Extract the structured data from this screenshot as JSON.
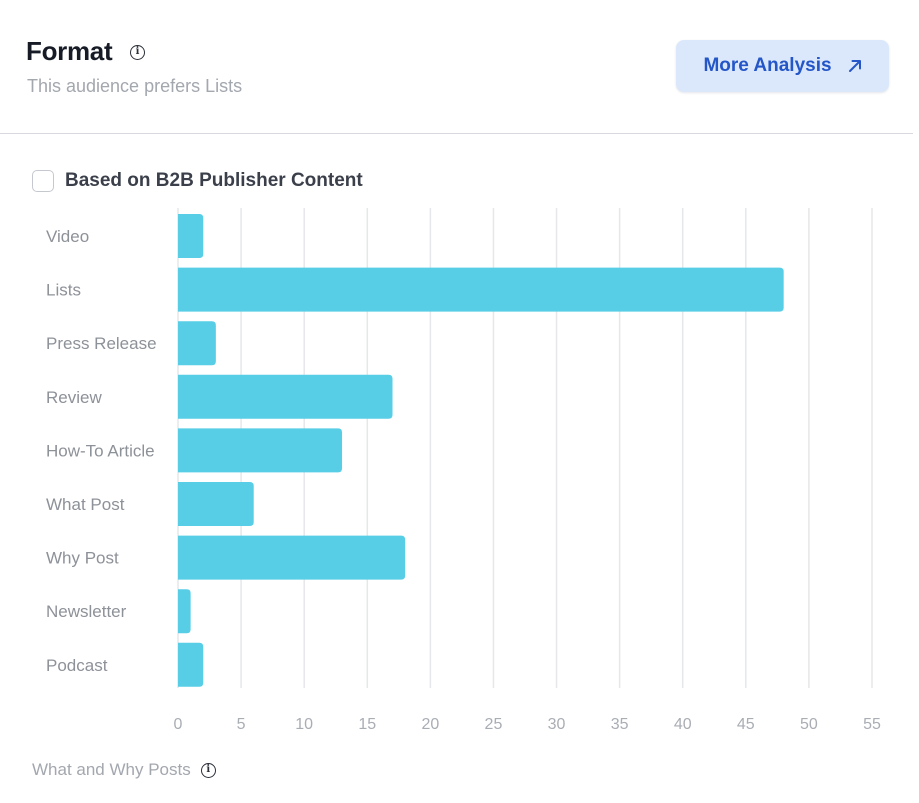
{
  "header": {
    "title": "Format",
    "info_icon": "info-icon",
    "subtitle": "This audience prefers Lists",
    "more_button_label": "More Analysis",
    "more_button_icon": "arrow-up-right-icon"
  },
  "filter": {
    "checkbox_label": "Based on B2B Publisher Content",
    "checked": false
  },
  "footer": {
    "note": "What and Why Posts",
    "info_icon": "info-icon"
  },
  "colors": {
    "bar": "#57cde6",
    "grid": "#e6e7ea",
    "button_bg": "#dbe8fb",
    "button_text": "#2456c8"
  },
  "chart_data": {
    "type": "bar",
    "orientation": "horizontal",
    "categories": [
      "Video",
      "Lists",
      "Press Release",
      "Review",
      "How-To Article",
      "What Post",
      "Why Post",
      "Newsletter",
      "Podcast"
    ],
    "values": [
      2,
      48,
      3,
      17,
      13,
      6,
      18,
      1,
      2
    ],
    "xlim": [
      0,
      55
    ],
    "xticks": [
      0,
      5,
      10,
      15,
      20,
      25,
      30,
      35,
      40,
      45,
      50,
      55
    ],
    "grid": true,
    "legend": "none"
  }
}
